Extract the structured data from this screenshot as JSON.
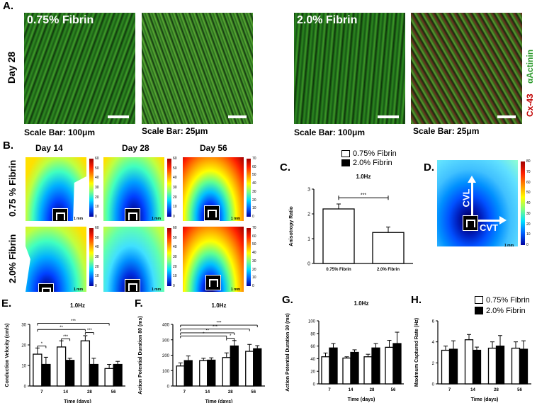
{
  "panel_a": {
    "label": "A.",
    "day_label": "Day 28",
    "fibrin_low": "0.75% Fibrin",
    "fibrin_high": "2.0% Fibrin",
    "scale_100": "Scale Bar: 100μm",
    "scale_25": "Scale Bar: 25μm",
    "stain_actinin": "αActinin",
    "stain_cx43": "Cx-43"
  },
  "panel_b": {
    "label": "B.",
    "days": [
      "Day 14",
      "Day 28",
      "Day 56"
    ],
    "row_low": "0.75 % Fibrin",
    "row_high": "2.0% Fibrin",
    "colorbar_ticks": [
      "60",
      "50",
      "40",
      "30",
      "20",
      "10",
      "0"
    ],
    "colorbar_ticks_56": [
      "70",
      "60",
      "50",
      "40",
      "30",
      "20",
      "10",
      "0"
    ],
    "mm_label": "1 mm"
  },
  "panel_d": {
    "label": "D.",
    "cvl": "CVL",
    "cvt": "CVT",
    "mm_label": "1 mm",
    "colorbar_ticks": [
      "80",
      "70",
      "60",
      "50",
      "40",
      "30",
      "20",
      "10",
      "0"
    ]
  },
  "legend": {
    "low": "0.75% Fibrin",
    "high": "2.0% Fibrin"
  },
  "chart_data": [
    {
      "id": "C",
      "label": "C.",
      "type": "bar",
      "title": "1.0Hz",
      "categories": [
        "0.75% Fibrin",
        "2.0% Fibrin"
      ],
      "values": [
        2.2,
        1.25
      ],
      "errors": [
        0.2,
        0.22
      ],
      "ylabel": "Anisotropy Ratio",
      "xlabel": "",
      "ylim": [
        0,
        3
      ],
      "yticks": [
        "0",
        "1",
        "2",
        "3"
      ],
      "significance": [
        "***"
      ]
    },
    {
      "id": "E",
      "label": "E.",
      "type": "bar",
      "title": "1.0Hz",
      "categories": [
        "7",
        "14",
        "28",
        "56"
      ],
      "series": [
        {
          "name": "0.75% Fibrin",
          "values": [
            15.5,
            19,
            22,
            8.5
          ],
          "errors": [
            3,
            3,
            2.5,
            2
          ]
        },
        {
          "name": "2.0% Fibrin",
          "values": [
            10.5,
            12.5,
            10.5,
            10.5
          ],
          "errors": [
            3.5,
            1,
            3,
            1.5
          ]
        }
      ],
      "ylabel": "Conduction Velocity (cm/s)",
      "xlabel": "Time (days)",
      "ylim": [
        0,
        30
      ],
      "yticks": [
        "0",
        "10",
        "20",
        "30"
      ],
      "significance": [
        "*",
        "**",
        "***",
        "**",
        "***"
      ]
    },
    {
      "id": "F",
      "label": "F.",
      "type": "bar",
      "title": "1.0Hz",
      "categories": [
        "7",
        "14",
        "28",
        "56"
      ],
      "series": [
        {
          "name": "0.75% Fibrin",
          "values": [
            130,
            165,
            185,
            225
          ],
          "errors": [
            20,
            15,
            30,
            45
          ]
        },
        {
          "name": "2.0% Fibrin",
          "values": [
            165,
            168,
            260,
            242
          ],
          "errors": [
            30,
            15,
            35,
            20
          ]
        }
      ],
      "ylabel": "Action Potential Duration 80 (ms)",
      "xlabel": "Time (days)",
      "ylim": [
        0,
        400
      ],
      "yticks": [
        "0",
        "100",
        "200",
        "300",
        "400"
      ],
      "significance": [
        "*",
        "*",
        "**",
        "***",
        "***"
      ]
    },
    {
      "id": "G",
      "label": "G.",
      "type": "bar",
      "title": "1.0Hz",
      "categories": [
        "7",
        "14",
        "28",
        "56"
      ],
      "series": [
        {
          "name": "0.75% Fibrin",
          "values": [
            43,
            41,
            43,
            58
          ],
          "errors": [
            6,
            2,
            4,
            11
          ]
        },
        {
          "name": "2.0% Fibrin",
          "values": [
            57,
            50,
            57,
            64
          ],
          "errors": [
            7,
            4,
            7,
            18
          ]
        }
      ],
      "ylabel": "Action Potential Duration 30 (ms)",
      "xlabel": "Time (days)",
      "ylim": [
        0,
        100
      ],
      "yticks": [
        "0",
        "20",
        "40",
        "60",
        "80",
        "100"
      ],
      "significance": []
    },
    {
      "id": "H",
      "label": "H.",
      "type": "bar",
      "title": "",
      "categories": [
        "7",
        "14",
        "28",
        "56"
      ],
      "series": [
        {
          "name": "0.75% Fibrin",
          "values": [
            3.2,
            4.2,
            3.4,
            3.4
          ],
          "errors": [
            0.4,
            0.5,
            0.6,
            0.6
          ]
        },
        {
          "name": "2.0% Fibrin",
          "values": [
            3.3,
            3.2,
            3.6,
            3.3
          ],
          "errors": [
            0.8,
            0.3,
            1.0,
            0.8
          ]
        }
      ],
      "ylabel": "Maximum Captured Rate (Hz)",
      "xlabel": "Time (days)",
      "ylim": [
        0,
        6
      ],
      "yticks": [
        "0",
        "2",
        "4",
        "6"
      ],
      "significance": []
    }
  ]
}
